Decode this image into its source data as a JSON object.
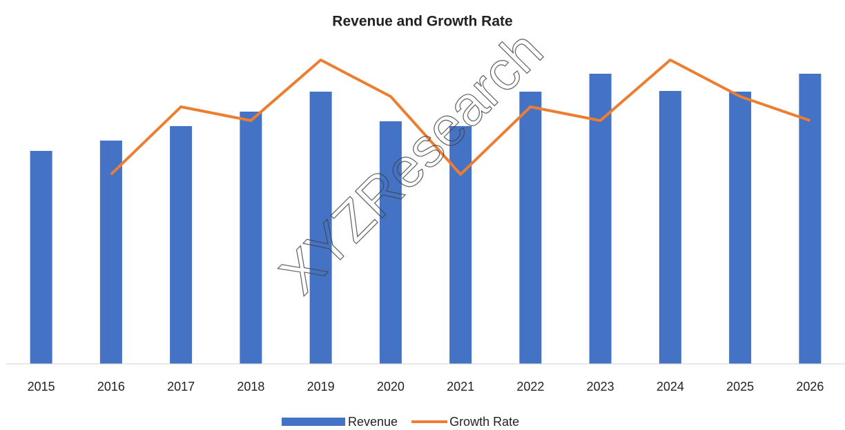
{
  "chart_data": {
    "type": "bar_line",
    "title": "Revenue and Growth Rate",
    "watermark": "XYZResearch",
    "categories": [
      "2015",
      "2016",
      "2017",
      "2018",
      "2019",
      "2020",
      "2021",
      "2022",
      "2023",
      "2024",
      "2025",
      "2026"
    ],
    "series": [
      {
        "name": "Revenue",
        "type": "bar",
        "color": "#4472c4",
        "values": [
          309,
          324,
          345,
          366,
          395,
          352,
          345,
          395,
          421,
          396,
          395,
          421
        ]
      },
      {
        "name": "Growth Rate",
        "type": "line",
        "color": "#ed7d31",
        "values": [
          null,
          275,
          373,
          353,
          441,
          388,
          275,
          373,
          353,
          441,
          388,
          353
        ]
      }
    ],
    "ylim": [
      0,
      480
    ],
    "grid": false,
    "legend": "bottom"
  }
}
